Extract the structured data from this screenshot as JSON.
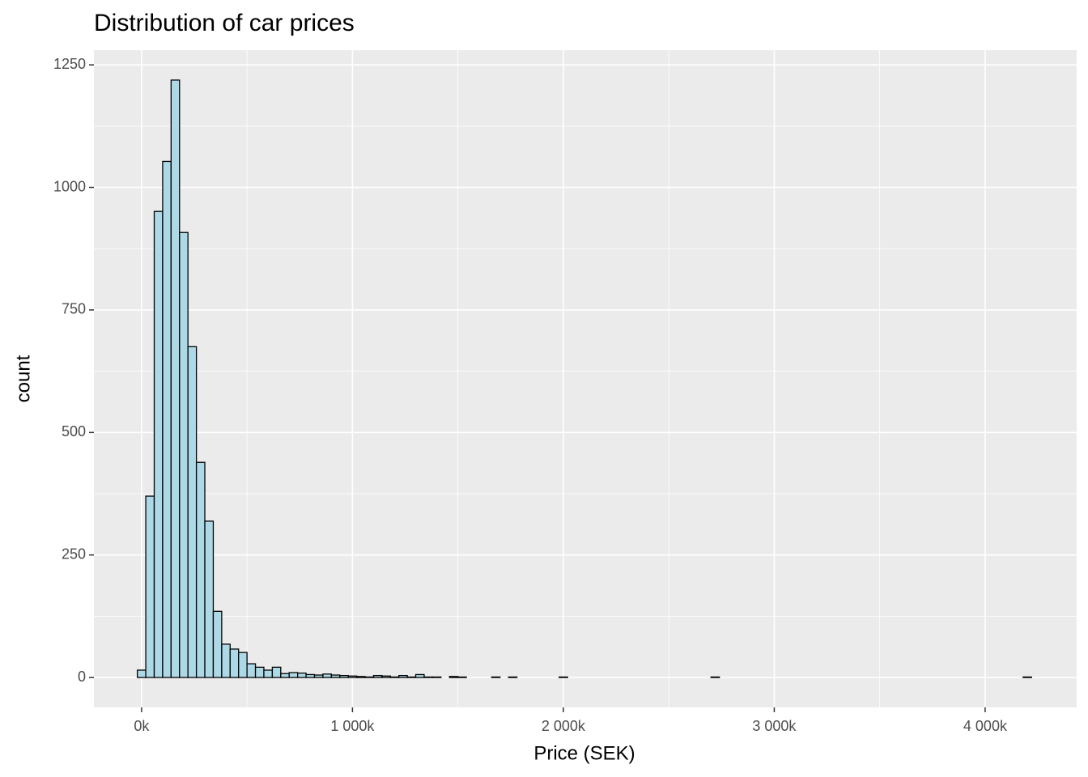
{
  "chart_data": {
    "type": "histogram",
    "title": "Distribution of car prices",
    "x_label": "Price (SEK)",
    "y_label": "count",
    "bins": [
      -20000,
      20000,
      60000,
      100000,
      140000,
      180000,
      220000,
      260000,
      300000,
      340000,
      380000,
      420000,
      460000,
      500000,
      540000,
      580000,
      620000,
      660000,
      700000,
      740000,
      780000,
      820000,
      860000,
      900000,
      940000,
      980000,
      1020000,
      1060000,
      1100000,
      1140000,
      1180000,
      1220000,
      1260000,
      1300000,
      1340000,
      1380000,
      1420000,
      1460000,
      1500000,
      1540000,
      1580000,
      1620000,
      1660000,
      1700000,
      1740000,
      1780000,
      1820000,
      1860000,
      1900000,
      1940000,
      1980000,
      2020000,
      2060000,
      2100000,
      2140000,
      2180000,
      2220000,
      2260000,
      2300000,
      2340000,
      2380000,
      2420000,
      2460000,
      2500000,
      2540000,
      2580000,
      2620000,
      2660000,
      2700000,
      2740000,
      2780000,
      2820000,
      2860000,
      2900000,
      2940000,
      2980000,
      3020000,
      3060000,
      3100000,
      3140000,
      3180000,
      3220000,
      3260000,
      3300000,
      3340000,
      3380000,
      3420000,
      3460000,
      3500000,
      3540000,
      3580000,
      3620000,
      3660000,
      3700000,
      3740000,
      3780000,
      3820000,
      3860000,
      3900000,
      3940000,
      3980000,
      4020000,
      4060000,
      4100000,
      4140000,
      4180000,
      4220000
    ],
    "counts": [
      15,
      370,
      951,
      1053,
      1219,
      908,
      675,
      439,
      319,
      135,
      68,
      58,
      51,
      28,
      21,
      15,
      21,
      8,
      10,
      9,
      6,
      5,
      7,
      5,
      4,
      3,
      2,
      1,
      4,
      3,
      1,
      4,
      1,
      6,
      1,
      1,
      0,
      2,
      1,
      0,
      0,
      0,
      1,
      0,
      1,
      0,
      0,
      0,
      0,
      0,
      1,
      0,
      0,
      0,
      0,
      0,
      0,
      0,
      0,
      0,
      0,
      0,
      0,
      0,
      0,
      0,
      0,
      0,
      1,
      0,
      0,
      0,
      0,
      0,
      0,
      0,
      0,
      0,
      0,
      0,
      0,
      0,
      0,
      0,
      0,
      0,
      0,
      0,
      0,
      0,
      0,
      0,
      0,
      0,
      0,
      0,
      0,
      0,
      0,
      0,
      0,
      0,
      0,
      0,
      0,
      1
    ],
    "fill": "#add8e6",
    "edge_color": "#000000",
    "xlim": [
      -226000,
      4434000
    ],
    "xticks": [
      {
        "value": 0,
        "label": "0k"
      },
      {
        "value": 1000000,
        "label": "1 000k"
      },
      {
        "value": 2000000,
        "label": "2 000k"
      },
      {
        "value": 3000000,
        "label": "3 000k"
      },
      {
        "value": 4000000,
        "label": "4 000k"
      }
    ],
    "ylim": [
      -61,
      1280
    ],
    "yticks": [
      0,
      250,
      500,
      750,
      1000,
      1250
    ],
    "grid": true
  }
}
